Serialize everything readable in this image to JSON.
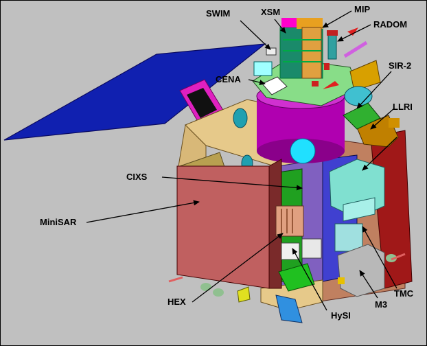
{
  "labels": {
    "swim": "SWIM",
    "xsm": "XSM",
    "mip": "MIP",
    "radom": "RADOM",
    "cena": "CENA",
    "sir2": "SIR-2",
    "llri": "LLRI",
    "cixs": "CIXS",
    "minisar": "MiniSAR",
    "hex": "HEX",
    "hysi": "HySI",
    "m3": "M3",
    "tmc": "TMC"
  },
  "colors": {
    "background": "#c0c0c0",
    "solar_panel": "#1020b0",
    "bus_top": "#e0c080",
    "cylinder": "#b000b0",
    "minisar_panel": "#c06060",
    "deck": "#80d880",
    "llri_box": "#80e0d0"
  }
}
